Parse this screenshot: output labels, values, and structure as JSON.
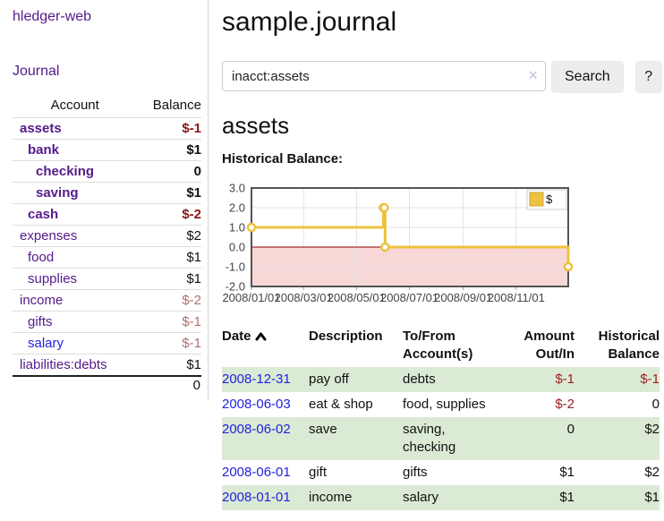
{
  "sidebar": {
    "brand": "hledger-web",
    "nav_journal": "Journal",
    "accounts": {
      "col_account": "Account",
      "col_balance": "Balance",
      "rows": [
        {
          "name": "assets",
          "indent": 1,
          "bold": true,
          "balance": "$-1",
          "neg": "bold-neg",
          "link": "purple"
        },
        {
          "name": "bank",
          "indent": 2,
          "bold": true,
          "balance": "$1",
          "neg": "none",
          "link": "purple"
        },
        {
          "name": "checking",
          "indent": 3,
          "bold": true,
          "balance": "0",
          "neg": "none",
          "link": "purple"
        },
        {
          "name": "saving",
          "indent": 3,
          "bold": true,
          "balance": "$1",
          "neg": "none",
          "link": "purple"
        },
        {
          "name": "cash",
          "indent": 2,
          "bold": true,
          "balance": "$-2",
          "neg": "bold-neg",
          "link": "purple"
        },
        {
          "name": "expenses",
          "indent": 1,
          "bold": false,
          "balance": "$2",
          "neg": "none",
          "link": "purple"
        },
        {
          "name": "food",
          "indent": 2,
          "bold": false,
          "balance": "$1",
          "neg": "none",
          "link": "purple"
        },
        {
          "name": "supplies",
          "indent": 2,
          "bold": false,
          "balance": "$1",
          "neg": "none",
          "link": "purple"
        },
        {
          "name": "income",
          "indent": 1,
          "bold": false,
          "balance": "$-2",
          "neg": "soft-neg",
          "link": "purple"
        },
        {
          "name": "gifts",
          "indent": 2,
          "bold": false,
          "balance": "$-1",
          "neg": "soft-neg",
          "link": "purple"
        },
        {
          "name": "salary",
          "indent": 2,
          "bold": false,
          "balance": "$-1",
          "neg": "soft-neg",
          "link": "blue"
        },
        {
          "name": "liabilities:debts",
          "indent": 1,
          "bold": false,
          "balance": "$1",
          "neg": "none",
          "link": "purple"
        }
      ],
      "total": "0"
    }
  },
  "main": {
    "title": "sample.journal",
    "search": {
      "value": "inacct:assets",
      "clear": "×",
      "button": "Search",
      "help": "?"
    },
    "heading": "assets",
    "chart_title": "Historical Balance:"
  },
  "chart_data": {
    "type": "line",
    "step": true,
    "title": "Historical Balance",
    "xlim": [
      "2008-01-01",
      "2008-12-31"
    ],
    "ylim": [
      -2,
      3
    ],
    "grid": true,
    "legend_position": "top-right",
    "series": [
      {
        "name": "$",
        "color": "#edc240",
        "points": [
          [
            "2008-01-01",
            1.0
          ],
          [
            "2008-06-01",
            2.0
          ],
          [
            "2008-06-02",
            2.0
          ],
          [
            "2008-06-03",
            0.0
          ],
          [
            "2008-12-31",
            -1.0
          ]
        ]
      }
    ],
    "x_ticks": [
      {
        "date": "2008-01-01",
        "label": "2008/01/01"
      },
      {
        "date": "2008-03-01",
        "label": "2008/03/01"
      },
      {
        "date": "2008-05-01",
        "label": "2008/05/01"
      },
      {
        "date": "2008-07-01",
        "label": "2008/07/01"
      },
      {
        "date": "2008-09-01",
        "label": "2008/09/01"
      },
      {
        "date": "2008-11-01",
        "label": "2008/11/01"
      }
    ],
    "y_ticks": [
      {
        "v": 3,
        "label": "3.0"
      },
      {
        "v": 2,
        "label": "2.0"
      },
      {
        "v": 1,
        "label": "1.0"
      },
      {
        "v": 0,
        "label": "0.0"
      },
      {
        "v": -1,
        "label": "-1.0"
      },
      {
        "v": -2,
        "label": "-2.0"
      }
    ],
    "negative_region_color": "#f8d7d7",
    "zero_line_color": "#8b0000"
  },
  "transactions": {
    "headers": {
      "date": "Date",
      "description": "Description",
      "accounts": "To/From Account(s)",
      "amount": "Amount Out/In",
      "balance": "Historical Balance"
    },
    "rows": [
      {
        "date": "2008-12-31",
        "description": "pay off",
        "accounts": "debts",
        "amount": "$-1",
        "balance": "$-1",
        "amount_neg": true,
        "balance_neg": true,
        "shaded": true
      },
      {
        "date": "2008-06-03",
        "description": "eat & shop",
        "accounts": "food, supplies",
        "amount": "$-2",
        "balance": "0",
        "amount_neg": true,
        "balance_neg": false,
        "shaded": false
      },
      {
        "date": "2008-06-02",
        "description": "save",
        "accounts": "saving, checking",
        "amount": "0",
        "balance": "$2",
        "amount_neg": false,
        "balance_neg": false,
        "shaded": true
      },
      {
        "date": "2008-06-01",
        "description": "gift",
        "accounts": "gifts",
        "amount": "$1",
        "balance": "$2",
        "amount_neg": false,
        "balance_neg": false,
        "shaded": false
      },
      {
        "date": "2008-01-01",
        "description": "income",
        "accounts": "salary",
        "amount": "$1",
        "balance": "$1",
        "amount_neg": false,
        "balance_neg": false,
        "shaded": true
      }
    ]
  }
}
